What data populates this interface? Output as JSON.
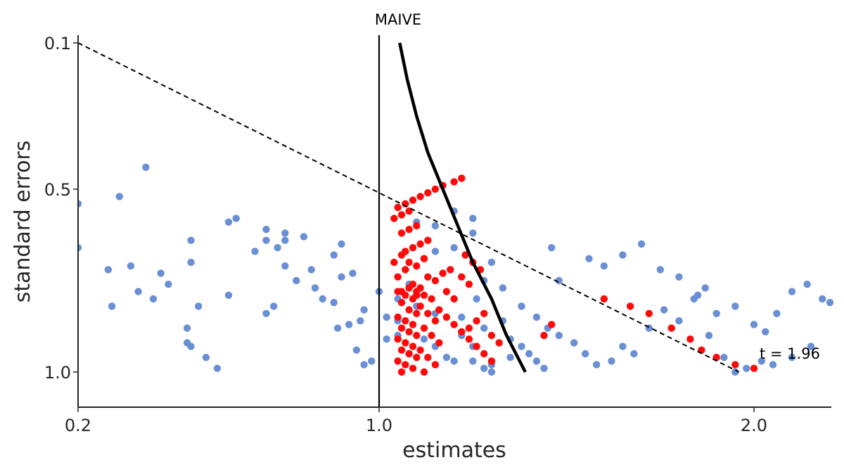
{
  "chart_data": {
    "type": "scatter",
    "xlabel": "estimates",
    "ylabel": "standard errors",
    "xlim": [
      0.2,
      2.2
    ],
    "ylim": [
      1.1,
      0.08
    ],
    "y_inverted": true,
    "xticks": [
      {
        "v": 0.2,
        "label": "0.2"
      },
      {
        "v": 1.0,
        "label": "1.0"
      },
      {
        "v": 2.0,
        "label": "2.0"
      }
    ],
    "yticks": [
      {
        "v": 0.1,
        "label": "0.1"
      },
      {
        "v": 0.5,
        "label": "0.5"
      },
      {
        "v": 1.0,
        "label": "1.0"
      }
    ],
    "grid": false,
    "colors": {
      "blue": "#6a8fd4",
      "red": "#ff0a0a",
      "axis": "#262626",
      "line": "#000000"
    },
    "vline": {
      "x": 1.0,
      "label": "MAIVE"
    },
    "dashed_line": {
      "points": [
        [
          0.2,
          0.1
        ],
        [
          1.96,
          1.0
        ]
      ],
      "label": "t = 1.96"
    },
    "curve": [
      [
        1.055,
        0.1
      ],
      [
        1.075,
        0.2
      ],
      [
        1.1,
        0.3
      ],
      [
        1.13,
        0.4
      ],
      [
        1.17,
        0.5
      ],
      [
        1.21,
        0.6
      ],
      [
        1.25,
        0.7
      ],
      [
        1.3,
        0.8
      ],
      [
        1.34,
        0.9
      ],
      [
        1.39,
        1.0
      ]
    ],
    "series": [
      {
        "color": "blue",
        "points": [
          [
            0.2,
            0.54
          ],
          [
            0.2,
            0.66
          ],
          [
            0.31,
            0.52
          ],
          [
            0.38,
            0.44
          ],
          [
            0.42,
            0.73
          ],
          [
            0.5,
            0.64
          ],
          [
            0.36,
            0.78
          ],
          [
            0.4,
            0.8
          ],
          [
            0.28,
            0.72
          ],
          [
            0.34,
            0.71
          ],
          [
            0.29,
            0.82
          ],
          [
            0.44,
            0.76
          ],
          [
            0.49,
            0.88
          ],
          [
            0.49,
            0.92
          ],
          [
            0.5,
            0.93
          ],
          [
            0.52,
            0.82
          ],
          [
            0.54,
            0.96
          ],
          [
            0.57,
            0.99
          ],
          [
            0.6,
            0.59
          ],
          [
            0.62,
            0.58
          ],
          [
            0.67,
            0.67
          ],
          [
            0.7,
            0.61
          ],
          [
            0.7,
            0.64
          ],
          [
            0.73,
            0.66
          ],
          [
            0.75,
            0.62
          ],
          [
            0.75,
            0.64
          ],
          [
            0.75,
            0.71
          ],
          [
            0.8,
            0.63
          ],
          [
            0.83,
            0.77
          ],
          [
            0.89,
            0.88
          ],
          [
            0.94,
            0.94
          ],
          [
            0.96,
            0.98
          ],
          [
            1.0,
            0.78
          ],
          [
            1.02,
            0.91
          ],
          [
            1.05,
            0.9
          ],
          [
            0.5,
            0.7
          ],
          [
            0.6,
            0.79
          ],
          [
            0.72,
            0.82
          ],
          [
            0.7,
            0.84
          ],
          [
            0.78,
            0.75
          ],
          [
            0.82,
            0.72
          ],
          [
            0.85,
            0.8
          ],
          [
            0.88,
            0.81
          ],
          [
            0.9,
            0.74
          ],
          [
            0.92,
            0.87
          ],
          [
            0.95,
            0.86
          ],
          [
            0.98,
            0.97
          ],
          [
            0.88,
            0.68
          ],
          [
            0.9,
            0.65
          ],
          [
            0.93,
            0.73
          ],
          [
            0.96,
            0.83
          ],
          [
            1.02,
            0.85
          ],
          [
            1.05,
            0.8
          ],
          [
            1.08,
            0.76
          ],
          [
            1.12,
            0.69
          ],
          [
            1.15,
            0.67
          ],
          [
            1.2,
            0.66
          ],
          [
            1.25,
            0.62
          ],
          [
            1.28,
            0.75
          ],
          [
            1.3,
            0.7
          ],
          [
            1.33,
            0.77
          ],
          [
            1.1,
            0.59
          ],
          [
            1.15,
            0.6
          ],
          [
            1.2,
            0.56
          ],
          [
            1.25,
            0.58
          ],
          [
            1.08,
            0.95
          ],
          [
            1.12,
            0.91
          ],
          [
            1.15,
            0.93
          ],
          [
            1.18,
            0.96
          ],
          [
            1.2,
            0.97
          ],
          [
            1.22,
            0.9
          ],
          [
            1.25,
            0.93
          ],
          [
            1.28,
            0.88
          ],
          [
            1.3,
            0.98
          ],
          [
            1.05,
            0.86
          ],
          [
            1.1,
            0.82
          ],
          [
            1.15,
            0.84
          ],
          [
            1.22,
            0.85
          ],
          [
            1.26,
            0.8
          ],
          [
            1.33,
            0.86
          ],
          [
            1.38,
            0.82
          ],
          [
            1.42,
            0.85
          ],
          [
            1.45,
            0.88
          ],
          [
            1.48,
            0.9
          ],
          [
            1.52,
            0.92
          ],
          [
            1.55,
            0.95
          ],
          [
            1.58,
            0.98
          ],
          [
            1.62,
            0.97
          ],
          [
            1.65,
            0.93
          ],
          [
            1.68,
            0.95
          ],
          [
            1.72,
            0.88
          ],
          [
            1.76,
            0.83
          ],
          [
            1.8,
            0.86
          ],
          [
            1.84,
            0.8
          ],
          [
            1.87,
            0.77
          ],
          [
            1.9,
            0.84
          ],
          [
            1.95,
            0.82
          ],
          [
            2.0,
            0.87
          ],
          [
            2.03,
            0.89
          ],
          [
            2.06,
            0.84
          ],
          [
            2.1,
            0.78
          ],
          [
            2.14,
            0.76
          ],
          [
            2.18,
            0.8
          ],
          [
            2.2,
            0.81
          ],
          [
            2.15,
            0.93
          ],
          [
            2.1,
            0.96
          ],
          [
            2.05,
            0.98
          ],
          [
            1.46,
            0.66
          ],
          [
            1.48,
            0.75
          ],
          [
            1.56,
            0.69
          ],
          [
            1.6,
            0.71
          ],
          [
            1.65,
            0.68
          ],
          [
            1.7,
            0.65
          ],
          [
            1.75,
            0.72
          ],
          [
            1.8,
            0.74
          ],
          [
            1.85,
            0.79
          ],
          [
            1.88,
            0.9
          ],
          [
            1.92,
            0.96
          ],
          [
            1.95,
            1.0
          ],
          [
            1.98,
            0.99
          ],
          [
            2.02,
            0.97
          ],
          [
            1.35,
            0.91
          ],
          [
            1.38,
            0.93
          ],
          [
            1.4,
            0.95
          ],
          [
            1.42,
            0.97
          ],
          [
            1.44,
            0.99
          ],
          [
            1.3,
            1.0
          ],
          [
            1.28,
            0.99
          ],
          [
            1.25,
            0.97
          ],
          [
            1.35,
            0.96
          ]
        ]
      },
      {
        "color": "red",
        "points": [
          [
            1.05,
            0.78
          ],
          [
            1.07,
            0.79
          ],
          [
            1.09,
            0.8
          ],
          [
            1.06,
            0.81
          ],
          [
            1.08,
            0.83
          ],
          [
            1.1,
            0.84
          ],
          [
            1.05,
            0.85
          ],
          [
            1.07,
            0.86
          ],
          [
            1.09,
            0.87
          ],
          [
            1.06,
            0.88
          ],
          [
            1.08,
            0.89
          ],
          [
            1.1,
            0.9
          ],
          [
            1.05,
            0.91
          ],
          [
            1.07,
            0.92
          ],
          [
            1.09,
            0.93
          ],
          [
            1.06,
            0.94
          ],
          [
            1.08,
            0.95
          ],
          [
            1.1,
            0.96
          ],
          [
            1.05,
            0.97
          ],
          [
            1.07,
            0.98
          ],
          [
            1.09,
            0.99
          ],
          [
            1.06,
            1.0
          ],
          [
            1.11,
            0.82
          ],
          [
            1.13,
            0.84
          ],
          [
            1.15,
            0.86
          ],
          [
            1.12,
            0.88
          ],
          [
            1.14,
            0.9
          ],
          [
            1.16,
            0.92
          ],
          [
            1.11,
            0.94
          ],
          [
            1.13,
            0.96
          ],
          [
            1.15,
            0.98
          ],
          [
            1.12,
            1.0
          ],
          [
            1.14,
            0.8
          ],
          [
            1.16,
            0.83
          ],
          [
            1.18,
            0.85
          ],
          [
            1.2,
            0.87
          ],
          [
            1.22,
            0.89
          ],
          [
            1.24,
            0.91
          ],
          [
            1.26,
            0.93
          ],
          [
            1.28,
            0.95
          ],
          [
            1.3,
            0.97
          ],
          [
            1.1,
            0.78
          ],
          [
            1.12,
            0.79
          ],
          [
            1.09,
            0.76
          ],
          [
            1.11,
            0.77
          ],
          [
            1.13,
            0.74
          ],
          [
            1.15,
            0.75
          ],
          [
            1.17,
            0.73
          ],
          [
            1.19,
            0.72
          ],
          [
            1.08,
            0.7
          ],
          [
            1.1,
            0.71
          ],
          [
            1.12,
            0.69
          ],
          [
            1.06,
            0.68
          ],
          [
            1.07,
            0.67
          ],
          [
            1.09,
            0.66
          ],
          [
            1.11,
            0.65
          ],
          [
            1.13,
            0.64
          ],
          [
            1.06,
            0.62
          ],
          [
            1.08,
            0.61
          ],
          [
            1.1,
            0.6
          ],
          [
            1.04,
            0.58
          ],
          [
            1.06,
            0.57
          ],
          [
            1.08,
            0.56
          ],
          [
            1.05,
            0.55
          ],
          [
            1.07,
            0.54
          ],
          [
            1.09,
            0.53
          ],
          [
            1.11,
            0.52
          ],
          [
            1.13,
            0.51
          ],
          [
            1.15,
            0.5
          ],
          [
            1.17,
            0.49
          ],
          [
            1.2,
            0.48
          ],
          [
            1.22,
            0.47
          ],
          [
            1.05,
            0.74
          ],
          [
            1.07,
            0.72
          ],
          [
            1.04,
            0.7
          ],
          [
            1.06,
            0.78
          ],
          [
            1.08,
            0.77
          ],
          [
            1.1,
            0.79
          ],
          [
            1.24,
            0.88
          ],
          [
            1.26,
            0.86
          ],
          [
            1.28,
            0.84
          ],
          [
            1.3,
            0.9
          ],
          [
            1.32,
            0.92
          ],
          [
            1.44,
            0.9
          ],
          [
            1.46,
            0.87
          ],
          [
            1.6,
            0.8
          ],
          [
            1.67,
            0.82
          ],
          [
            1.72,
            0.84
          ],
          [
            1.78,
            0.88
          ],
          [
            1.83,
            0.91
          ],
          [
            1.86,
            0.94
          ],
          [
            1.9,
            0.96
          ],
          [
            1.95,
            0.98
          ],
          [
            2.0,
            0.99
          ],
          [
            1.23,
            0.68
          ],
          [
            1.25,
            0.7
          ],
          [
            1.27,
            0.72
          ],
          [
            1.22,
            0.74
          ],
          [
            1.24,
            0.76
          ],
          [
            1.18,
            0.78
          ],
          [
            1.2,
            0.8
          ]
        ]
      }
    ]
  }
}
